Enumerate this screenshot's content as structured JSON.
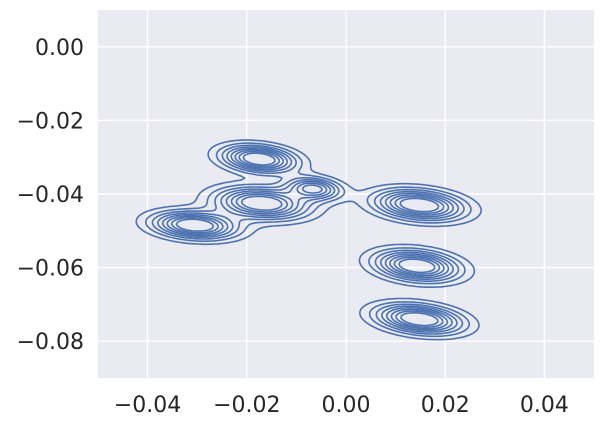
{
  "chart_data": {
    "type": "contour",
    "title": "",
    "xlabel": "",
    "ylabel": "",
    "xlim": [
      -0.05,
      0.05
    ],
    "ylim": [
      -0.09,
      0.01
    ],
    "x_ticks": [
      -0.04,
      -0.02,
      0.0,
      0.02,
      0.04
    ],
    "x_tick_labels": [
      "−0.04",
      "−0.02",
      "0.00",
      "0.02",
      "0.04"
    ],
    "y_ticks": [
      0.0,
      -0.02,
      -0.04,
      -0.06,
      -0.08
    ],
    "y_tick_labels": [
      "0.00",
      "−0.02",
      "−0.04",
      "−0.06",
      "−0.08"
    ],
    "grid": true,
    "colors": {
      "background": "#eaeaf2",
      "grid": "#ffffff",
      "line": "#4c72b0",
      "text": "#262626"
    },
    "clusters": [
      {
        "x": -0.0305,
        "y": -0.0485,
        "sx": 0.0055,
        "sy": 0.0024,
        "rho": -0.2,
        "amplitude": 1.0
      },
      {
        "x": -0.0175,
        "y": -0.0305,
        "sx": 0.0048,
        "sy": 0.0024,
        "rho": -0.25,
        "amplitude": 1.0
      },
      {
        "x": -0.017,
        "y": -0.0425,
        "sx": 0.006,
        "sy": 0.0028,
        "rho": -0.2,
        "amplitude": 1.0
      },
      {
        "x": -0.0065,
        "y": -0.0385,
        "sx": 0.0036,
        "sy": 0.002,
        "rho": -0.2,
        "amplitude": 0.75
      },
      {
        "x": 0.0148,
        "y": -0.043,
        "sx": 0.0058,
        "sy": 0.0027,
        "rho": -0.25,
        "amplitude": 1.0
      },
      {
        "x": 0.0143,
        "y": -0.0595,
        "sx": 0.0054,
        "sy": 0.0027,
        "rho": -0.25,
        "amplitude": 1.0
      },
      {
        "x": 0.0148,
        "y": -0.074,
        "sx": 0.0056,
        "sy": 0.0026,
        "rho": -0.3,
        "amplitude": 1.0
      }
    ],
    "contour_levels": [
      0.1,
      0.2,
      0.3,
      0.4,
      0.5,
      0.6,
      0.7,
      0.8
    ]
  }
}
